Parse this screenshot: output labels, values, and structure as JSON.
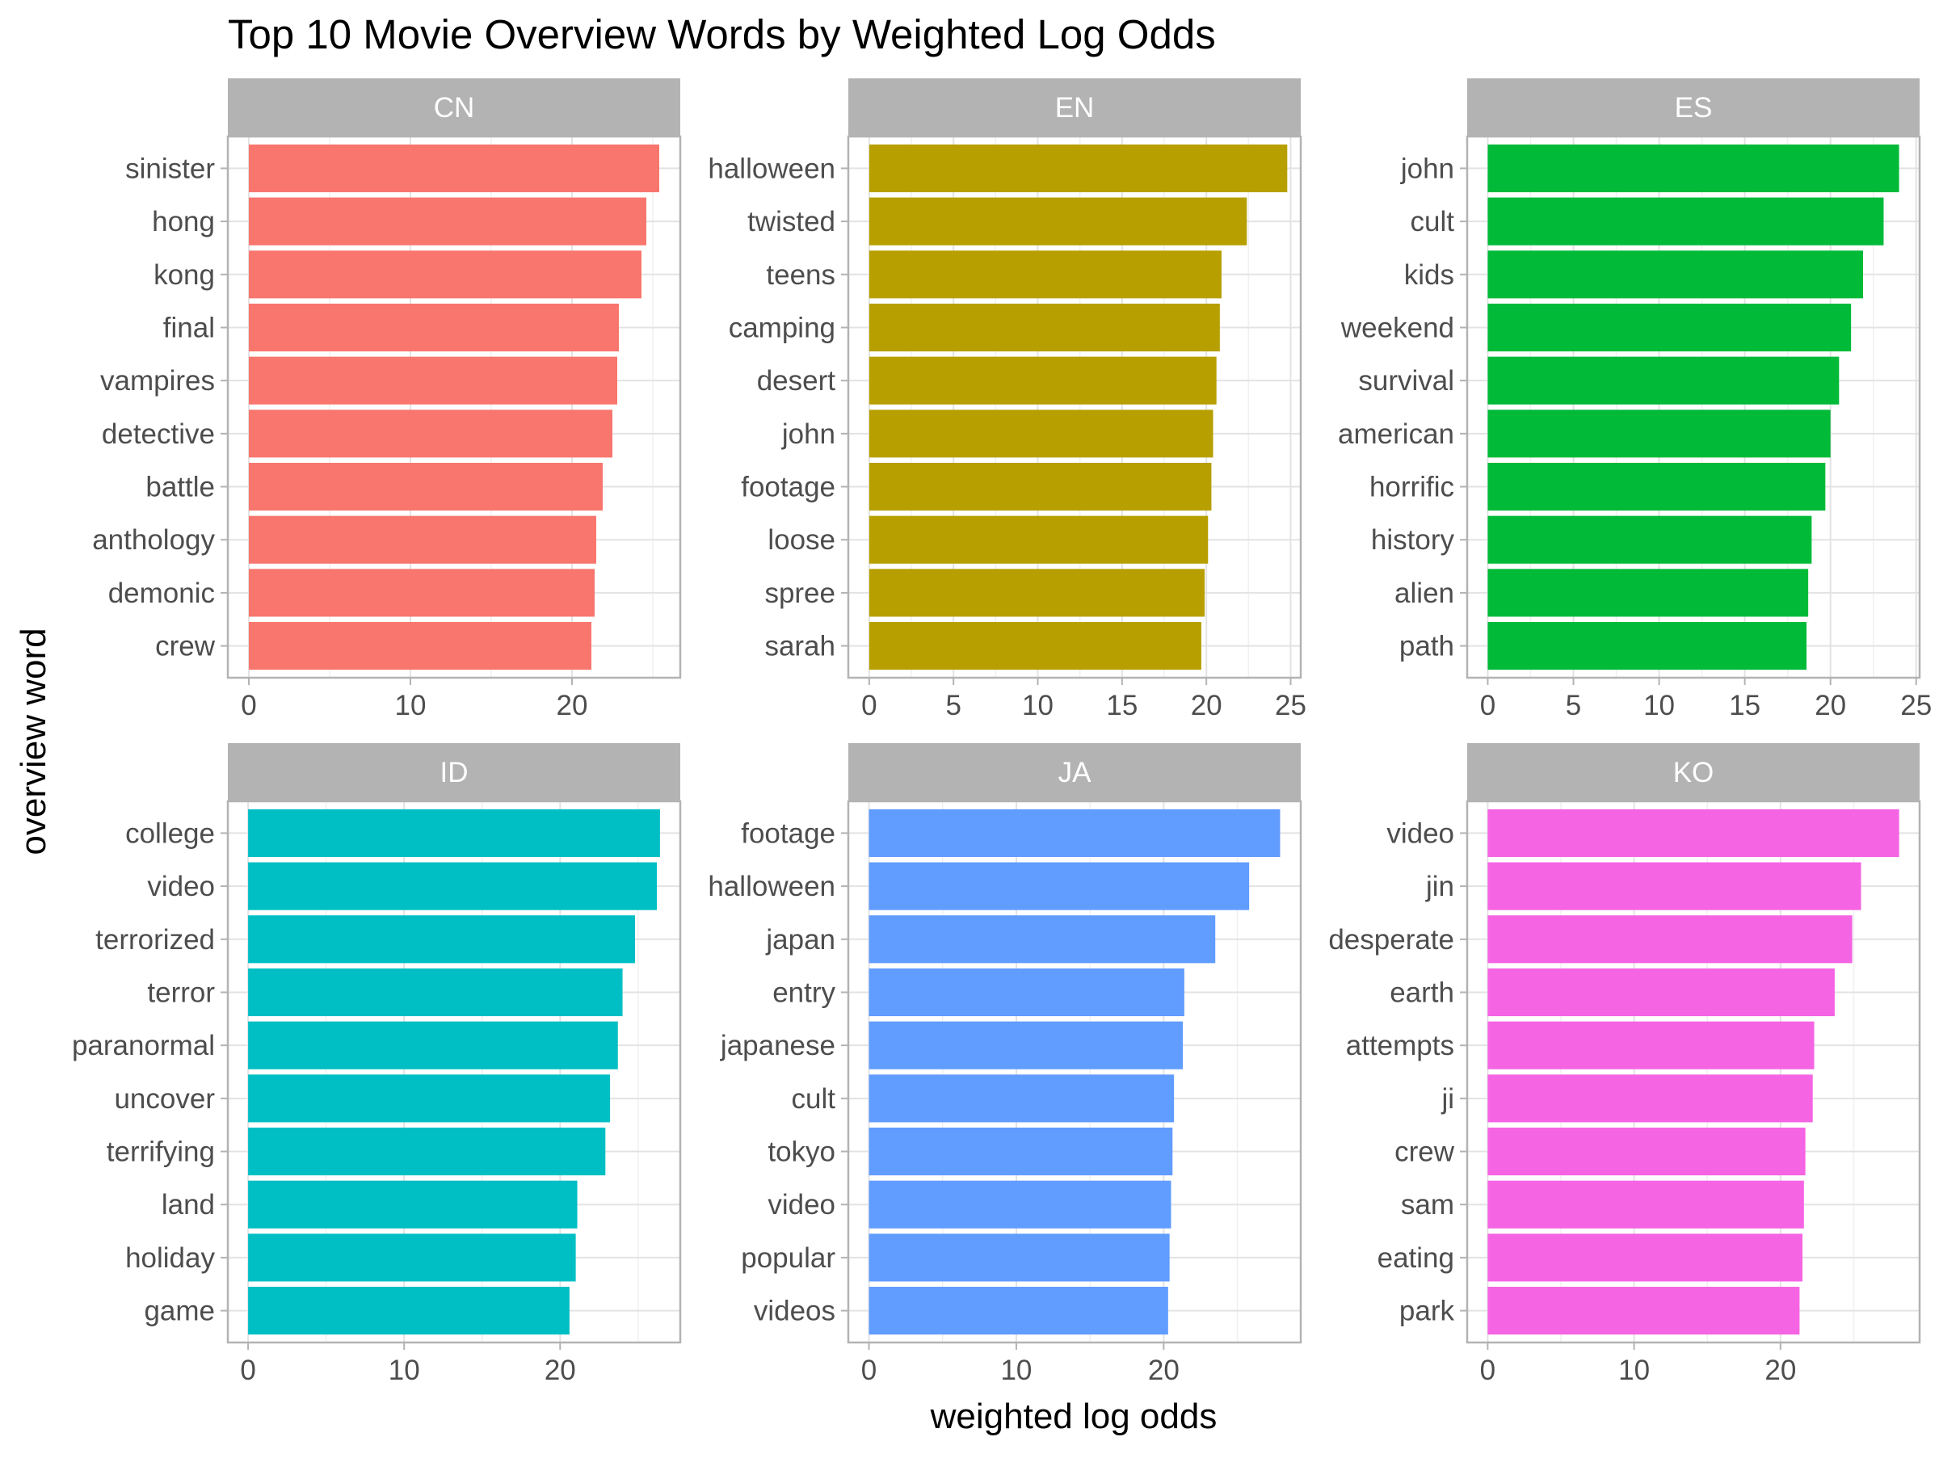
{
  "chart_data": {
    "type": "bar",
    "orientation": "horizontal",
    "title": "Top 10 Movie Overview Words by Weighted Log Odds",
    "xlabel": "weighted log odds",
    "ylabel": "overview word",
    "grid": true,
    "legend": "none",
    "panels": [
      {
        "label": "CN",
        "color": "#F8766D",
        "categories": [
          "sinister",
          "hong",
          "kong",
          "final",
          "vampires",
          "detective",
          "battle",
          "anthology",
          "demonic",
          "crew"
        ],
        "values": [
          25.4,
          24.6,
          24.3,
          22.9,
          22.8,
          22.5,
          21.9,
          21.5,
          21.4,
          21.2
        ],
        "xlim": [
          -1.3,
          26.7
        ],
        "xticks": [
          0,
          10,
          20
        ]
      },
      {
        "label": "EN",
        "color": "#B79F00",
        "categories": [
          "halloween",
          "twisted",
          "teens",
          "camping",
          "desert",
          "john",
          "footage",
          "loose",
          "spree",
          "sarah"
        ],
        "values": [
          24.8,
          22.4,
          20.9,
          20.8,
          20.6,
          20.4,
          20.3,
          20.1,
          19.9,
          19.7
        ],
        "xlim": [
          -1.24,
          25.6
        ],
        "xticks": [
          0,
          5,
          10,
          15,
          20,
          25
        ]
      },
      {
        "label": "ES",
        "color": "#00BA38",
        "categories": [
          "john",
          "cult",
          "kids",
          "weekend",
          "survival",
          "american",
          "horrific",
          "history",
          "alien",
          "path"
        ],
        "values": [
          24.0,
          23.1,
          21.9,
          21.2,
          20.5,
          20.0,
          19.7,
          18.9,
          18.7,
          18.6
        ],
        "xlim": [
          -1.2,
          25.2
        ],
        "xticks": [
          0,
          5,
          10,
          15,
          20,
          25
        ]
      },
      {
        "label": "ID",
        "color": "#00BFC4",
        "categories": [
          "college",
          "video",
          "terrorized",
          "terror",
          "paranormal",
          "uncover",
          "terrifying",
          "land",
          "holiday",
          "game"
        ],
        "values": [
          26.4,
          26.2,
          24.8,
          24.0,
          23.7,
          23.2,
          22.9,
          21.1,
          21.0,
          20.6
        ],
        "xlim": [
          -1.3,
          27.7
        ],
        "xticks": [
          0,
          10,
          20
        ]
      },
      {
        "label": "JA",
        "color": "#619CFF",
        "categories": [
          "footage",
          "halloween",
          "japan",
          "entry",
          "japanese",
          "cult",
          "tokyo",
          "video",
          "popular",
          "videos"
        ],
        "values": [
          27.9,
          25.8,
          23.5,
          21.4,
          21.3,
          20.7,
          20.6,
          20.5,
          20.4,
          20.3
        ],
        "xlim": [
          -1.4,
          29.3
        ],
        "xticks": [
          0,
          10,
          20
        ]
      },
      {
        "label": "KO",
        "color": "#F564E3",
        "categories": [
          "video",
          "jin",
          "desperate",
          "earth",
          "attempts",
          "ji",
          "crew",
          "sam",
          "eating",
          "park"
        ],
        "values": [
          28.1,
          25.5,
          24.9,
          23.7,
          22.3,
          22.2,
          21.7,
          21.6,
          21.5,
          21.3
        ],
        "xlim": [
          -1.4,
          29.5
        ],
        "xticks": [
          0,
          10,
          20
        ]
      }
    ]
  }
}
